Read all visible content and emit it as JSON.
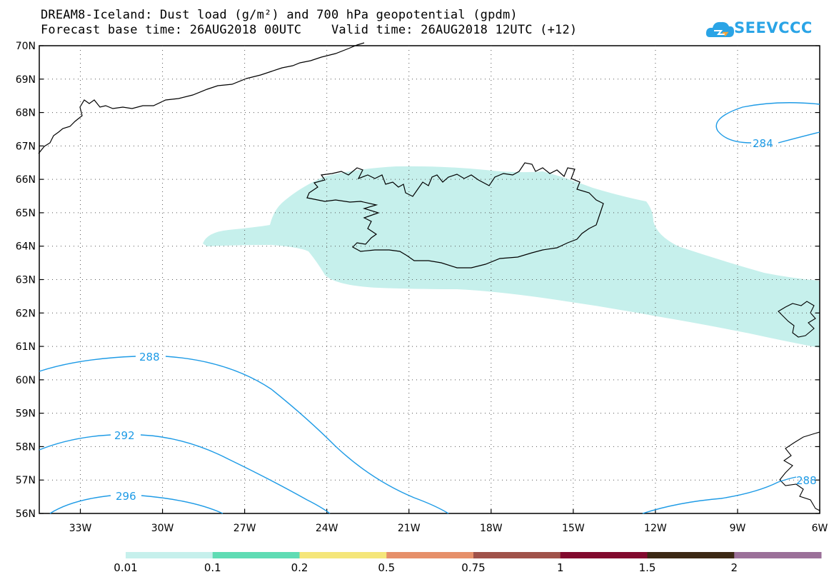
{
  "title": {
    "line1": "DREAM8-Iceland: Dust load (g/m²) and 700 hPa geopotential (gpdm)",
    "line2": "Forecast base time: 26AUG2018 00UTC    Valid time: 26AUG2018 12UTC (+12)"
  },
  "logo": {
    "text": "SEEVCCC",
    "color": "#2aa4e6"
  },
  "map": {
    "lat_labels": [
      "70N",
      "69N",
      "68N",
      "67N",
      "66N",
      "65N",
      "64N",
      "63N",
      "62N",
      "61N",
      "60N",
      "59N",
      "58N",
      "57N",
      "56N"
    ],
    "lon_labels": [
      "33W",
      "30W",
      "27W",
      "24W",
      "21W",
      "18W",
      "15W",
      "12W",
      "9W",
      "6W"
    ],
    "lat_range": [
      56,
      70
    ],
    "lon_range": [
      -34.5,
      -6
    ],
    "dust_fill_color": "#c6f0ec",
    "contour_color": "#1e9be6",
    "contour_labels": [
      "284",
      "288",
      "292",
      "296",
      "288"
    ]
  },
  "colorbar": {
    "colors": [
      "#c6f0ec",
      "#5fdcb4",
      "#f5e67a",
      "#e6906a",
      "#a0524a",
      "#820a2e",
      "#3c2814",
      "#9b7099"
    ],
    "labels": [
      "0.01",
      "0.1",
      "0.2",
      "0.5",
      "0.75",
      "1",
      "1.5",
      "2"
    ]
  }
}
